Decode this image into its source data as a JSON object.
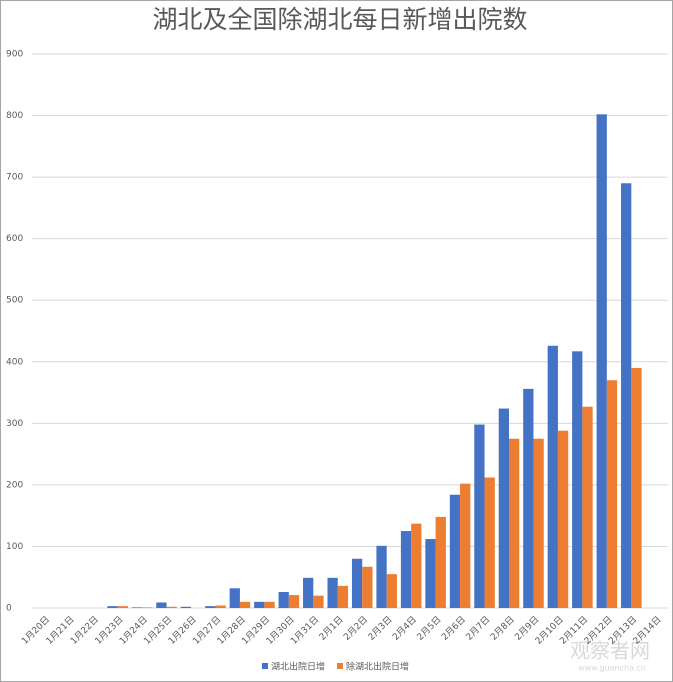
{
  "chart_data": {
    "type": "bar",
    "title": "湖北及全国除湖北每日新增出院数",
    "categories": [
      "1月20日",
      "1月21日",
      "1月22日",
      "1月23日",
      "1月24日",
      "1月25日",
      "1月26日",
      "1月27日",
      "1月28日",
      "1月29日",
      "1月30日",
      "1月31日",
      "2月1日",
      "2月2日",
      "2月3日",
      "2月4日",
      "2月5日",
      "2月6日",
      "2月7日",
      "2月8日",
      "2月9日",
      "2月10日",
      "2月11日",
      "2月12日",
      "2月13日",
      "2月14日"
    ],
    "series": [
      {
        "name": "湖北出院日增",
        "color": "#4472c4",
        "values": [
          0,
          0,
          0,
          3,
          1,
          9,
          2,
          3,
          32,
          10,
          26,
          49,
          49,
          80,
          101,
          125,
          112,
          184,
          298,
          324,
          356,
          426,
          417,
          802,
          690,
          null
        ]
      },
      {
        "name": "除湖北出院日增",
        "color": "#ed7d31",
        "values": [
          0,
          0,
          0,
          3,
          1,
          2,
          0,
          4,
          10,
          10,
          21,
          20,
          36,
          67,
          55,
          137,
          148,
          202,
          212,
          275,
          275,
          288,
          327,
          370,
          390,
          null
        ]
      }
    ],
    "ylim": [
      0,
      900
    ],
    "yticks": [
      0,
      100,
      200,
      300,
      400,
      500,
      600,
      700,
      800,
      900
    ],
    "grid": true,
    "legend": "bottom",
    "watermark": "观察者网",
    "watermark_url": "www.guancha.cn"
  }
}
